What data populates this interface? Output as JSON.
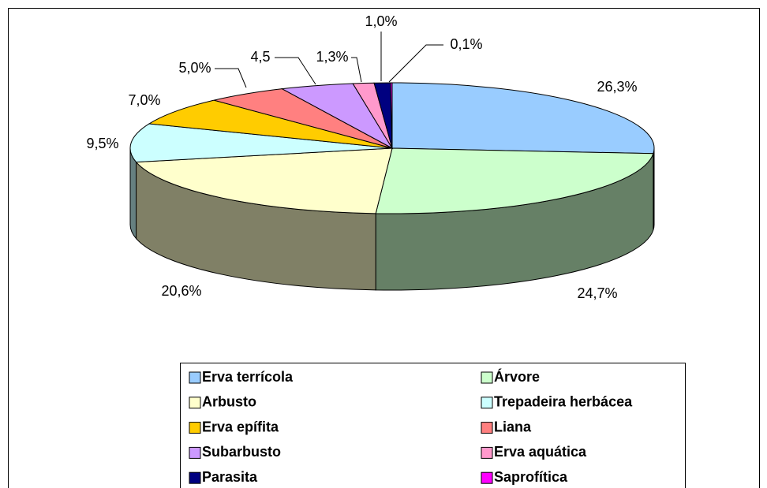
{
  "chart_data": {
    "type": "pie",
    "categories": [
      "Erva terrícola",
      "Árvore",
      "Arbusto",
      "Trepadeira herbácea",
      "Erva epífita",
      "Liana",
      "Subarbusto",
      "Erva aquática",
      "Parasita",
      "Saprofítica"
    ],
    "values": [
      26.3,
      24.7,
      20.6,
      9.5,
      7.0,
      5.0,
      4.5,
      1.3,
      1.0,
      0.1
    ],
    "value_labels": [
      "26,3%",
      "24,7%",
      "20,6%",
      "9,5%",
      "7,0%",
      "5,0%",
      "4,5",
      "1,3%",
      "1,0%",
      "0,1%"
    ],
    "colors": [
      "#99ccff",
      "#ccffcc",
      "#ffffcc",
      "#ccffff",
      "#ffcc00",
      "#ff8080",
      "#cc99ff",
      "#ff99cc",
      "#000080",
      "#ff00ff"
    ],
    "legend": "bottom"
  }
}
